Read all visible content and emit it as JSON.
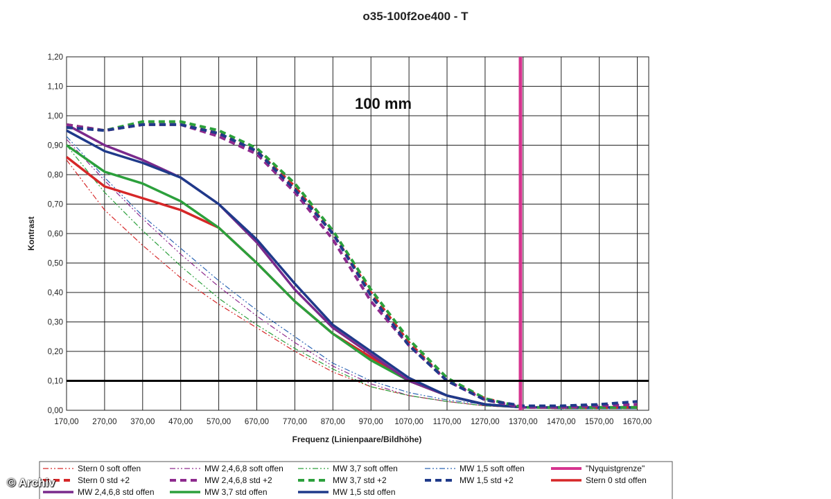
{
  "chart_data": {
    "type": "line",
    "title": "o35-100f2oe400 - T",
    "annotation": "100 mm",
    "xlabel": "Frequenz (Linienpaare/Bildhöhe)",
    "ylabel": "Kontrast",
    "xlim": [
      170,
      1700
    ],
    "ylim": [
      0,
      1.2
    ],
    "x_ticks": [
      "170,00",
      "270,00",
      "370,00",
      "470,00",
      "570,00",
      "670,00",
      "770,00",
      "870,00",
      "970,00",
      "1070,00",
      "1170,00",
      "1270,00",
      "1370,00",
      "1470,00",
      "1570,00",
      "1670,00"
    ],
    "y_ticks": [
      "0,00",
      "0,10",
      "0,20",
      "0,30",
      "0,40",
      "0,50",
      "0,60",
      "0,70",
      "0,80",
      "0,90",
      "1,00",
      "1,10",
      "1,20"
    ],
    "grid": true,
    "legend_position": "bottom",
    "reference_lines": [
      {
        "type": "vertical",
        "name": "\"Nyquistgrenze\"",
        "x": 1363,
        "color": "#d6348f"
      },
      {
        "type": "horizontal",
        "y": 0.1,
        "color": "#000000"
      }
    ],
    "series": [
      {
        "name": "Stern 0 soft offen",
        "color": "#d62728",
        "style": "dashdotdot",
        "width": 1.2,
        "x": [
          170,
          270,
          370,
          470,
          570,
          670,
          770,
          870,
          970,
          1070,
          1170,
          1270,
          1370,
          1470,
          1570,
          1670
        ],
        "y": [
          0.85,
          0.68,
          0.56,
          0.45,
          0.36,
          0.28,
          0.2,
          0.13,
          0.08,
          0.05,
          0.03,
          0.015,
          0.008,
          0.005,
          0.005,
          0.005
        ]
      },
      {
        "name": "MW 2,4,6,8 soft offen",
        "color": "#8e2a8e",
        "style": "dashdotdot",
        "width": 1.2,
        "x": [
          170,
          270,
          370,
          470,
          570,
          670,
          770,
          870,
          970,
          1070,
          1170,
          1270,
          1370,
          1470,
          1570,
          1670
        ],
        "y": [
          0.92,
          0.78,
          0.65,
          0.53,
          0.42,
          0.32,
          0.23,
          0.15,
          0.09,
          0.05,
          0.03,
          0.015,
          0.008,
          0.005,
          0.005,
          0.005
        ]
      },
      {
        "name": "MW 3,7 soft offen",
        "color": "#2ca03c",
        "style": "dashdotdot",
        "width": 1.2,
        "x": [
          170,
          270,
          370,
          470,
          570,
          670,
          770,
          870,
          970,
          1070,
          1170,
          1270,
          1370,
          1470,
          1570,
          1670
        ],
        "y": [
          0.9,
          0.74,
          0.61,
          0.49,
          0.38,
          0.29,
          0.21,
          0.14,
          0.08,
          0.05,
          0.03,
          0.015,
          0.008,
          0.005,
          0.005,
          0.005
        ]
      },
      {
        "name": "MW 1,5 soft offen",
        "color": "#2a64b4",
        "style": "dashdotdot",
        "width": 1.2,
        "x": [
          170,
          270,
          370,
          470,
          570,
          670,
          770,
          870,
          970,
          1070,
          1170,
          1270,
          1370,
          1470,
          1570,
          1670
        ],
        "y": [
          0.93,
          0.79,
          0.66,
          0.55,
          0.44,
          0.34,
          0.25,
          0.16,
          0.1,
          0.06,
          0.035,
          0.02,
          0.01,
          0.005,
          0.005,
          0.005
        ]
      },
      {
        "name": "Stern 0 std +2",
        "color": "#d62728",
        "style": "dashed",
        "width": 4,
        "x": [
          170,
          270,
          370,
          470,
          570,
          670,
          770,
          870,
          970,
          1070,
          1170,
          1270,
          1370,
          1470,
          1570,
          1670
        ],
        "y": [
          0.97,
          0.95,
          0.97,
          0.97,
          0.94,
          0.88,
          0.76,
          0.6,
          0.4,
          0.23,
          0.1,
          0.04,
          0.01,
          0.01,
          0.01,
          0.01
        ]
      },
      {
        "name": "MW 2,4,6,8 std +2",
        "color": "#8e2a8e",
        "style": "dashed",
        "width": 4,
        "x": [
          170,
          270,
          370,
          470,
          570,
          670,
          770,
          870,
          970,
          1070,
          1170,
          1270,
          1370,
          1470,
          1570,
          1670
        ],
        "y": [
          0.97,
          0.95,
          0.97,
          0.97,
          0.93,
          0.87,
          0.74,
          0.58,
          0.37,
          0.22,
          0.1,
          0.035,
          0.01,
          0.01,
          0.015,
          0.02
        ]
      },
      {
        "name": "MW 3,7 std +2",
        "color": "#2ca03c",
        "style": "dashed",
        "width": 4,
        "x": [
          170,
          270,
          370,
          470,
          570,
          670,
          770,
          870,
          970,
          1070,
          1170,
          1270,
          1370,
          1470,
          1570,
          1670
        ],
        "y": [
          0.97,
          0.95,
          0.98,
          0.98,
          0.95,
          0.89,
          0.77,
          0.61,
          0.41,
          0.24,
          0.11,
          0.04,
          0.01,
          0.01,
          0.01,
          0.01
        ]
      },
      {
        "name": "MW 1,5 std +2",
        "color": "#1f3a8a",
        "style": "dashed",
        "width": 4,
        "x": [
          170,
          270,
          370,
          470,
          570,
          670,
          770,
          870,
          970,
          1070,
          1170,
          1270,
          1370,
          1470,
          1570,
          1670
        ],
        "y": [
          0.96,
          0.95,
          0.97,
          0.97,
          0.94,
          0.88,
          0.75,
          0.6,
          0.39,
          0.22,
          0.1,
          0.035,
          0.015,
          0.015,
          0.02,
          0.03
        ]
      },
      {
        "name": "Stern 0 std offen",
        "color": "#d62728",
        "style": "solid",
        "width": 3.5,
        "x": [
          170,
          270,
          370,
          470,
          570,
          670,
          770,
          870,
          970,
          1070,
          1170,
          1270,
          1370,
          1470,
          1570,
          1670
        ],
        "y": [
          0.86,
          0.76,
          0.72,
          0.68,
          0.62,
          0.5,
          0.37,
          0.26,
          0.18,
          0.1,
          0.05,
          0.02,
          0.01,
          0.01,
          0.01,
          0.01
        ]
      },
      {
        "name": "MW 2,4,6,8 std offen",
        "color": "#7a2a8c",
        "style": "solid",
        "width": 3.5,
        "x": [
          170,
          270,
          370,
          470,
          570,
          670,
          770,
          870,
          970,
          1070,
          1170,
          1270,
          1370,
          1470,
          1570,
          1670
        ],
        "y": [
          0.97,
          0.9,
          0.85,
          0.79,
          0.7,
          0.57,
          0.41,
          0.28,
          0.19,
          0.1,
          0.05,
          0.02,
          0.01,
          0.01,
          0.01,
          0.01
        ]
      },
      {
        "name": "MW 3,7 std offen",
        "color": "#2ca03c",
        "style": "solid",
        "width": 3.5,
        "x": [
          170,
          270,
          370,
          470,
          570,
          670,
          770,
          870,
          970,
          1070,
          1170,
          1270,
          1370,
          1470,
          1570,
          1670
        ],
        "y": [
          0.9,
          0.81,
          0.77,
          0.71,
          0.62,
          0.5,
          0.37,
          0.26,
          0.17,
          0.1,
          0.05,
          0.02,
          0.01,
          0.01,
          0.01,
          0.01
        ]
      },
      {
        "name": "MW 1,5 std offen",
        "color": "#1f3a8a",
        "style": "solid",
        "width": 3.5,
        "x": [
          170,
          270,
          370,
          470,
          570,
          670,
          770,
          870,
          970,
          1070,
          1170,
          1270,
          1370,
          1470,
          1570,
          1670
        ],
        "y": [
          0.95,
          0.88,
          0.84,
          0.79,
          0.7,
          0.58,
          0.43,
          0.29,
          0.2,
          0.11,
          0.05,
          0.02,
          0.01,
          0.01,
          0.01,
          0.01
        ]
      }
    ]
  },
  "legend": {
    "items": [
      {
        "label": "Stern 0 soft offen",
        "series": 0
      },
      {
        "label": "MW 2,4,6,8 soft offen",
        "series": 1
      },
      {
        "label": "MW 3,7 soft offen",
        "series": 2
      },
      {
        "label": "MW 1,5 soft offen",
        "series": 3
      },
      {
        "label": "\"Nyquistgrenze\"",
        "series": "nyquist"
      },
      {
        "label": "Stern 0 std +2",
        "series": 4
      },
      {
        "label": "MW 2,4,6,8 std +2",
        "series": 5
      },
      {
        "label": "MW 3,7 std +2",
        "series": 6
      },
      {
        "label": "MW 1,5 std +2",
        "series": 7
      },
      {
        "label": "Stern 0 std offen",
        "series": 8
      },
      {
        "label": "MW 2,4,6,8 std offen",
        "series": 9
      },
      {
        "label": "MW 3,7 std offen",
        "series": 10
      },
      {
        "label": "MW 1,5 std offen",
        "series": 11
      }
    ]
  },
  "watermark": "© Archiv"
}
